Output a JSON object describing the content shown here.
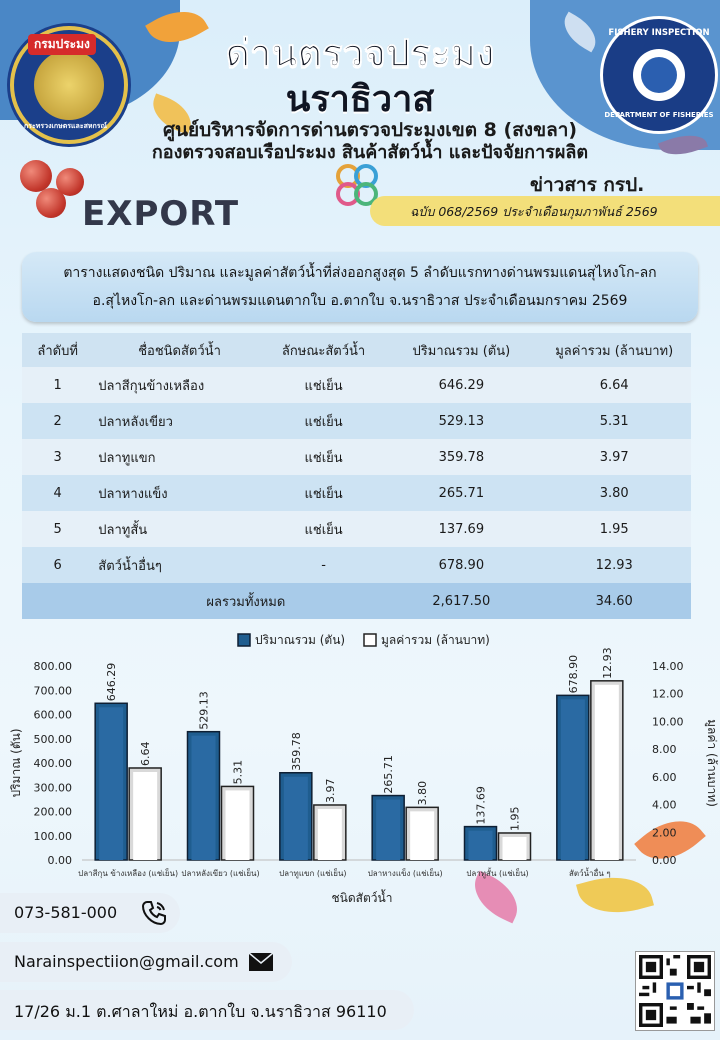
{
  "header": {
    "title": "ด่านตรวจประมง",
    "subtitle": "นราธิวาส",
    "center_name": "ศูนย์บริหารจัดการด่านตรวจประมงเขต 8 (สงขลา)",
    "division": "กองตรวจสอบเรือประมง สินค้าสัตว์น้ำ และปัจจัยการผลิต",
    "left_seal_text": "กรมประมง",
    "left_seal_subtext": "กระทรวงเกษตรและสหกรณ์",
    "right_seal_top": "FISHERY INSPECTION",
    "right_seal_bottom": "DEPARTMENT OF FISHERIES",
    "export_label": "EXPORT",
    "news_label": "ข่าวสาร กรป.",
    "issue": "ฉบับ 068/2569 ประจำเดือนกุมภาพันธ์ 2569"
  },
  "table": {
    "caption_line1": "ตารางแสดงชนิด ปริมาณ และมูลค่าสัตว์น้ำที่ส่งออกสูงสุด 5 ลำดับแรกทางด่านพรมแดนสุไหงโก-ลก",
    "caption_line2": "อ.สุไหงโก-ลก และด่านพรมแดนตากใบ  อ.ตากใบ  จ.นราธิวาส  ประจำเดือนมกราคม  2569",
    "headers": [
      "ลำดับที่",
      "ชื่อชนิดสัตว์น้ำ",
      "ลักษณะสัตว์น้ำ",
      "ปริมาณรวม (ตัน)",
      "มูลค่ารวม (ล้านบาท)"
    ],
    "rows": [
      {
        "rank": "1",
        "name": "ปลาสีกุนข้างเหลือง",
        "trait": "แช่เย็น",
        "qty": "646.29",
        "value": "6.64"
      },
      {
        "rank": "2",
        "name": "ปลาหลังเขียว",
        "trait": "แช่เย็น",
        "qty": "529.13",
        "value": "5.31"
      },
      {
        "rank": "3",
        "name": "ปลาทูแขก",
        "trait": "แช่เย็น",
        "qty": "359.78",
        "value": "3.97"
      },
      {
        "rank": "4",
        "name": "ปลาหางแข็ง",
        "trait": "แช่เย็น",
        "qty": "265.71",
        "value": "3.80"
      },
      {
        "rank": "5",
        "name": "ปลาทูสั้น",
        "trait": "แช่เย็น",
        "qty": "137.69",
        "value": "1.95"
      },
      {
        "rank": "6",
        "name": "สัตว์น้ำอื่นๆ",
        "trait": "-",
        "qty": "678.90",
        "value": "12.93"
      }
    ],
    "total_label": "ผลรวมทั้งหมด",
    "total_qty": "2,617.50",
    "total_value": "34.60"
  },
  "chart_data": {
    "type": "bar",
    "categories": [
      "ปลาสีกุน ข้างเหลือง (แช่เย็น)",
      "ปลาหลังเขียว (แช่เย็น)",
      "ปลาทูแขก (แช่เย็น)",
      "ปลาหางแข็ง (แช่เย็น)",
      "ปลาทูสั้น (แช่เย็น)",
      "สัตว์น้ำอื่น ๆ"
    ],
    "series": [
      {
        "name": "ปริมาณรวม (ตัน)",
        "values": [
          646.29,
          529.13,
          359.78,
          265.71,
          137.69,
          678.9
        ],
        "axis": "left",
        "color": "#1f5d8f"
      },
      {
        "name": "มูลค่ารวม (ล้านบาท)",
        "values": [
          6.64,
          5.31,
          3.97,
          3.8,
          1.95,
          12.93
        ],
        "axis": "right",
        "color": "#ffffff"
      }
    ],
    "data_labels_left": [
      "646.29",
      "529.13",
      "359.78",
      "265.71",
      "137.69",
      "678.90"
    ],
    "data_labels_right": [
      "6.64",
      "5.31",
      "3.97",
      "3.80",
      "1.95",
      "12.93"
    ],
    "xlabel": "ชนิดสัตว์น้ำ",
    "ylabel": "ปริมาณ (ตัน)",
    "y2label": "มูลค่า (ล้านบาท)",
    "ylim": [
      0,
      800
    ],
    "y2lim": [
      0,
      14
    ],
    "yticks": [
      "0.00",
      "100.00",
      "200.00",
      "300.00",
      "400.00",
      "500.00",
      "600.00",
      "700.00",
      "800.00"
    ],
    "y2ticks": [
      "0.00",
      "2.00",
      "4.00",
      "6.00",
      "8.00",
      "10.00",
      "12.00",
      "14.00"
    ],
    "legend": "top"
  },
  "contact": {
    "phone": "073-581-000",
    "email": "Narainspectiion@gmail.com",
    "address": "17/26 ม.1 ต.ศาลาใหม่ อ.ตากใบ จ.นราธิวาส 96110"
  }
}
